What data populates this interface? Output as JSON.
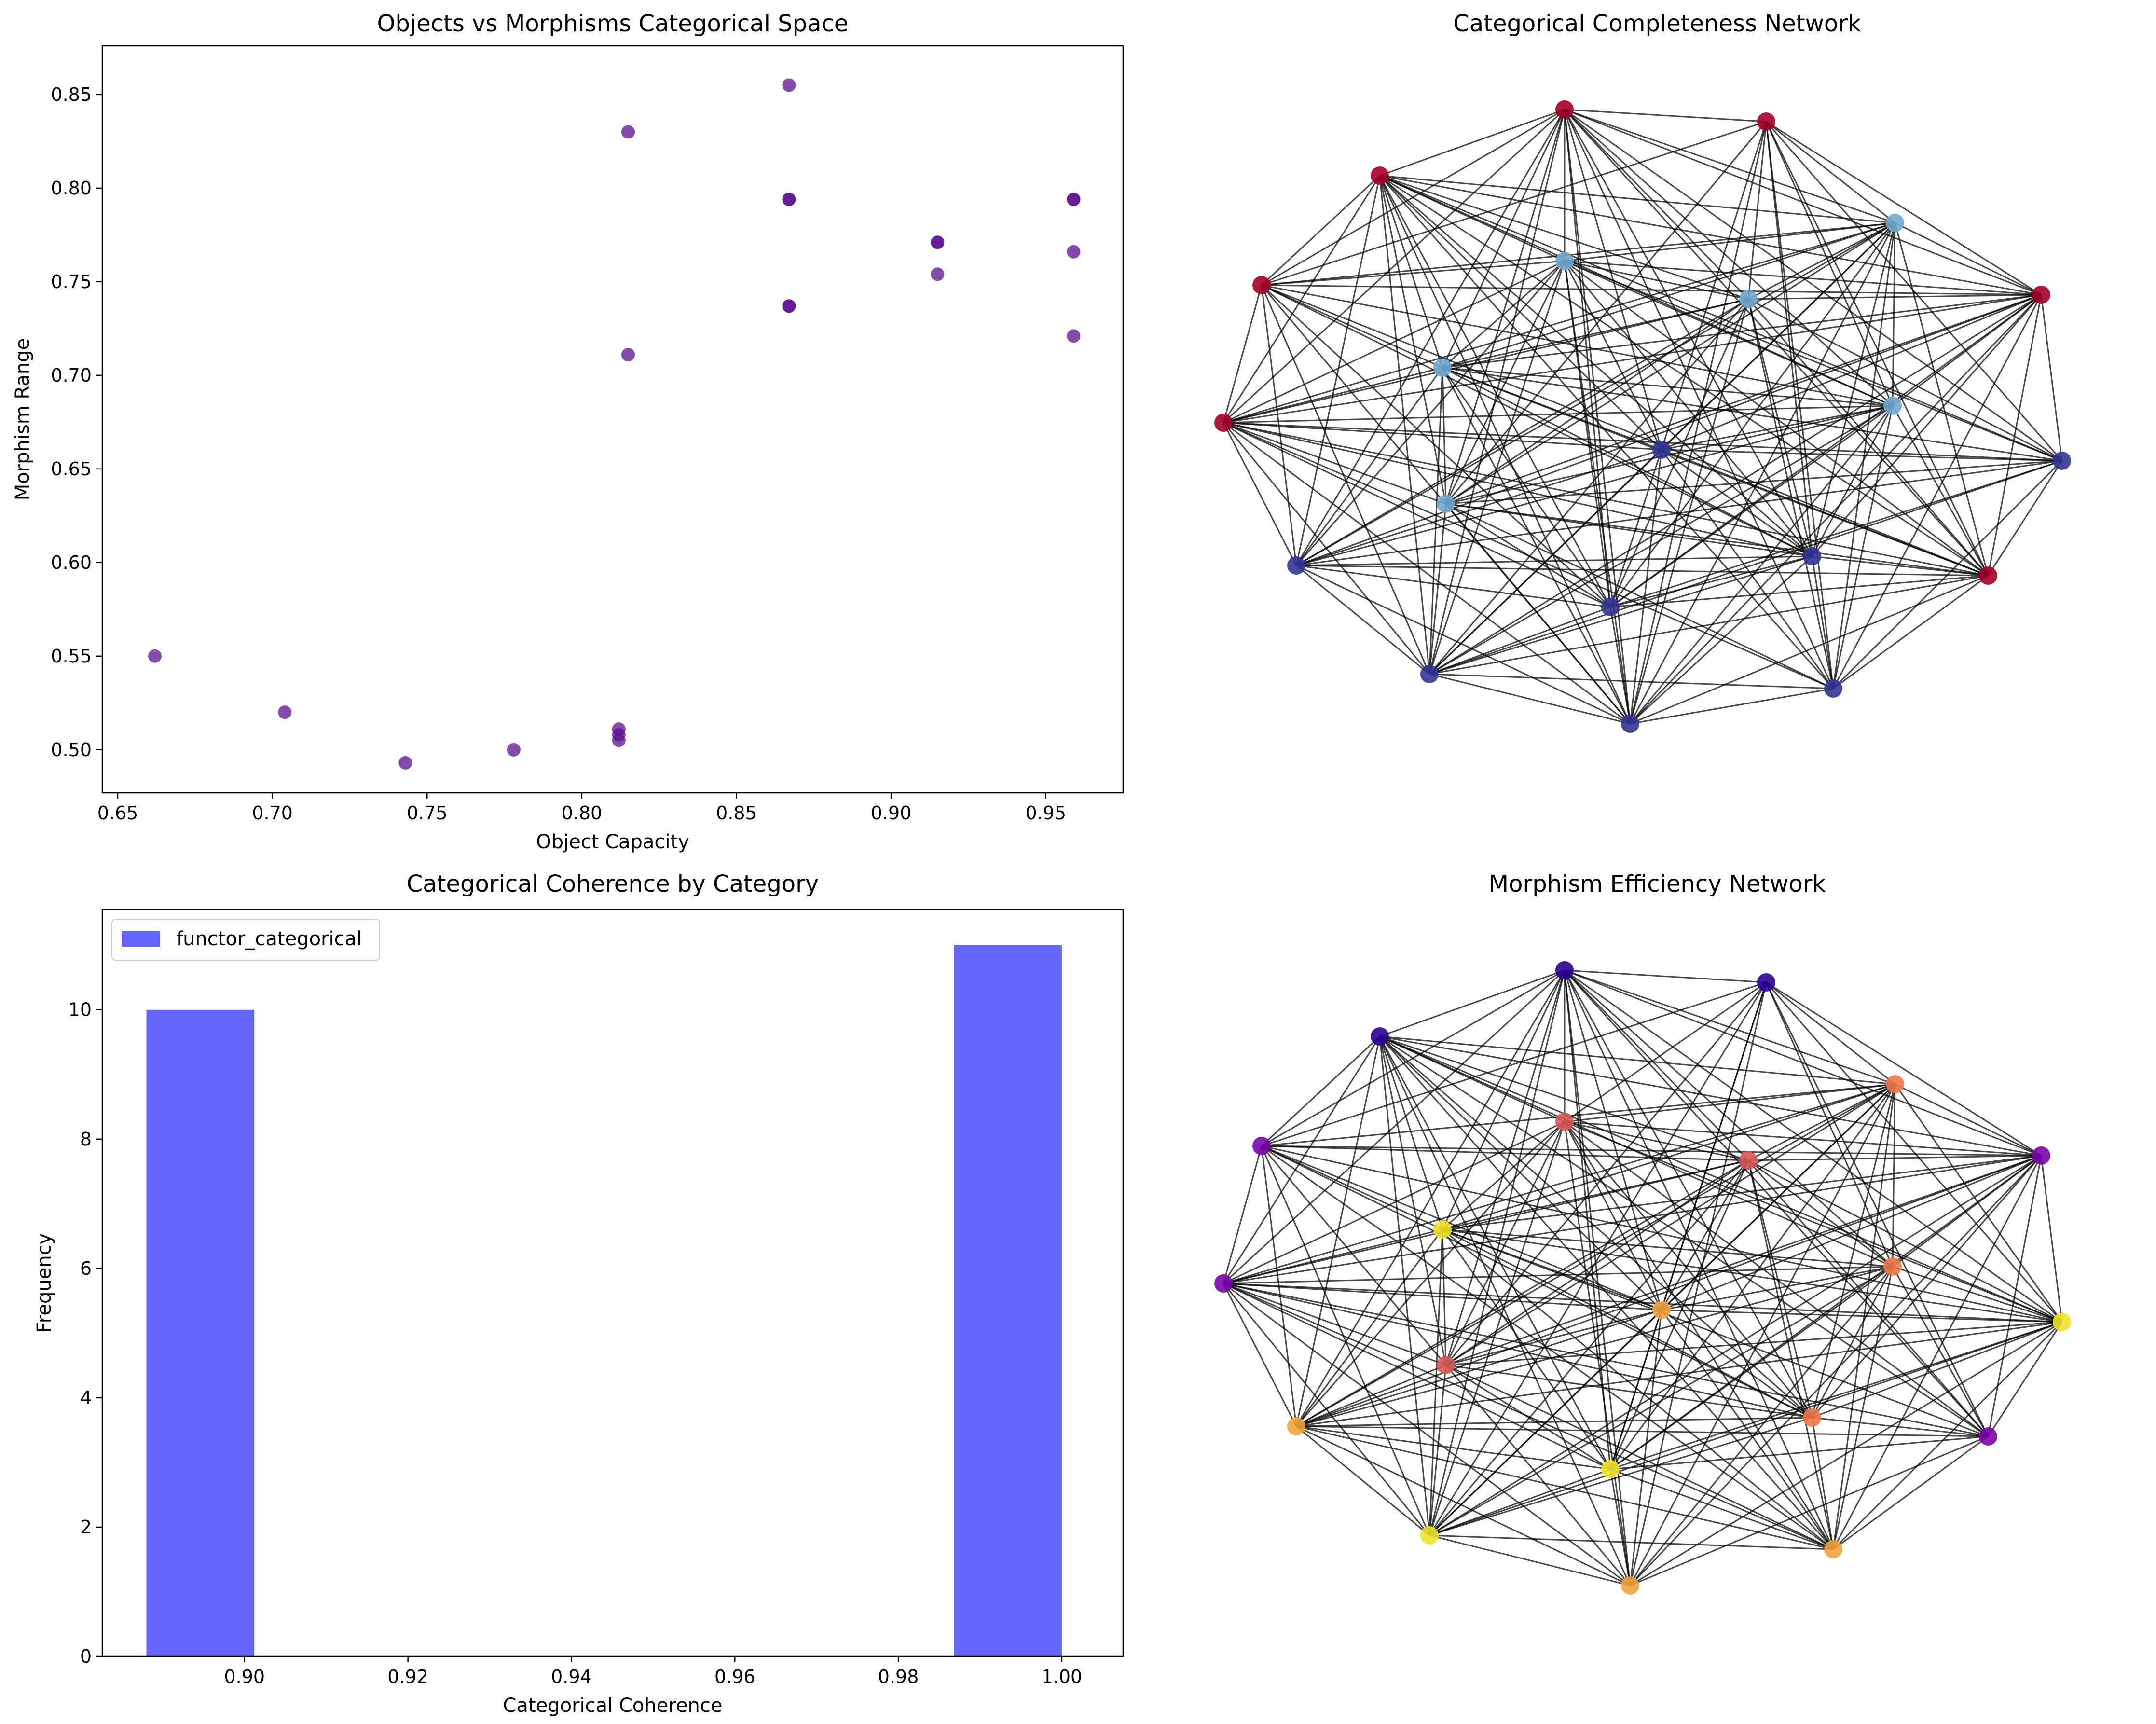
{
  "colors": {
    "scatter_point": "#5b0f8f",
    "histogram_bar": "#6666ff",
    "edge": "#000000",
    "completeness_palette": [
      "#a50026",
      "#6fa8d1",
      "#313695"
    ],
    "efficiency_palette": [
      "#2c0094",
      "#7a06a8",
      "#d9595a",
      "#ee7848",
      "#f0a43c",
      "#f0e229"
    ]
  },
  "chart_data": [
    {
      "id": "scatter",
      "type": "scatter",
      "title": "Objects vs Morphisms Categorical Space",
      "xlabel": "Object Capacity",
      "ylabel": "Morphism Range",
      "xlim": [
        0.645,
        0.975
      ],
      "ylim": [
        0.477,
        0.876
      ],
      "xticks": [
        0.65,
        0.7,
        0.75,
        0.8,
        0.85,
        0.9,
        0.95
      ],
      "xtick_labels": [
        "0.65",
        "0.70",
        "0.75",
        "0.80",
        "0.85",
        "0.90",
        "0.95"
      ],
      "yticks": [
        0.5,
        0.55,
        0.6,
        0.65,
        0.7,
        0.75,
        0.8,
        0.85
      ],
      "ytick_labels": [
        "0.50",
        "0.55",
        "0.60",
        "0.65",
        "0.70",
        "0.75",
        "0.80",
        "0.85"
      ],
      "grid": false,
      "points": [
        {
          "x": 0.662,
          "y": 0.55
        },
        {
          "x": 0.704,
          "y": 0.52
        },
        {
          "x": 0.743,
          "y": 0.493
        },
        {
          "x": 0.778,
          "y": 0.5
        },
        {
          "x": 0.812,
          "y": 0.511
        },
        {
          "x": 0.812,
          "y": 0.508
        },
        {
          "x": 0.812,
          "y": 0.505
        },
        {
          "x": 0.815,
          "y": 0.711
        },
        {
          "x": 0.815,
          "y": 0.83
        },
        {
          "x": 0.867,
          "y": 0.855
        },
        {
          "x": 0.867,
          "y": 0.794
        },
        {
          "x": 0.867,
          "y": 0.794
        },
        {
          "x": 0.867,
          "y": 0.737
        },
        {
          "x": 0.867,
          "y": 0.737
        },
        {
          "x": 0.915,
          "y": 0.771
        },
        {
          "x": 0.915,
          "y": 0.771
        },
        {
          "x": 0.915,
          "y": 0.754
        },
        {
          "x": 0.959,
          "y": 0.794
        },
        {
          "x": 0.959,
          "y": 0.794
        },
        {
          "x": 0.959,
          "y": 0.766
        },
        {
          "x": 0.959,
          "y": 0.721
        }
      ]
    },
    {
      "id": "completeness",
      "type": "network",
      "title": "Categorical Completeness Network",
      "node_count": 21,
      "edges": "complete-like, dense",
      "node_colors": [
        "#a50026",
        "#a50026",
        "#a50026",
        "#a50026",
        "#a50026",
        "#a50026",
        "#a50026",
        "#313695",
        "#313695",
        "#313695",
        "#313695",
        "#313695",
        "#313695",
        "#313695",
        "#6fa8d1",
        "#6fa8d1",
        "#6fa8d1",
        "#6fa8d1",
        "#6fa8d1",
        "#6fa8d1",
        "#313695"
      ]
    },
    {
      "id": "histogram",
      "type": "bar",
      "title": "Categorical Coherence by Category",
      "xlabel": "Categorical Coherence",
      "ylabel": "Frequency",
      "xlim": [
        0.8826,
        1.0075
      ],
      "ylim": [
        0,
        11.55
      ],
      "xticks": [
        0.9,
        0.92,
        0.94,
        0.96,
        0.98,
        1.0
      ],
      "xtick_labels": [
        "0.90",
        "0.92",
        "0.94",
        "0.96",
        "0.98",
        "1.00"
      ],
      "yticks": [
        0,
        2,
        4,
        6,
        8,
        10
      ],
      "ytick_labels": [
        "0",
        "2",
        "4",
        "6",
        "8",
        "10"
      ],
      "bins": [
        {
          "x0": 0.888,
          "x1": 0.9012,
          "count": 10
        },
        {
          "x0": 0.9868,
          "x1": 1.0,
          "count": 11
        }
      ],
      "legend": {
        "position": "upper-left",
        "entries": [
          "functor_categorical"
        ]
      },
      "series": [
        {
          "name": "functor_categorical",
          "values": [
            10,
            11
          ]
        }
      ]
    },
    {
      "id": "efficiency",
      "type": "network",
      "title": "Morphism Efficiency Network",
      "node_count": 21,
      "edges": "complete-like, dense",
      "node_colors": [
        "#2c0094",
        "#2c0094",
        "#2c0094",
        "#7a06a8",
        "#7a06a8",
        "#7a06a8",
        "#f0e229",
        "#7a06a8",
        "#f0a43c",
        "#f0e229",
        "#f0a43c",
        "#f0a43c",
        "#f0a43c",
        "#d9595a",
        "#d9595a",
        "#ee7848",
        "#ee7848",
        "#f0e229",
        "#d9595a",
        "#f0e229",
        "#ee7848"
      ]
    }
  ]
}
